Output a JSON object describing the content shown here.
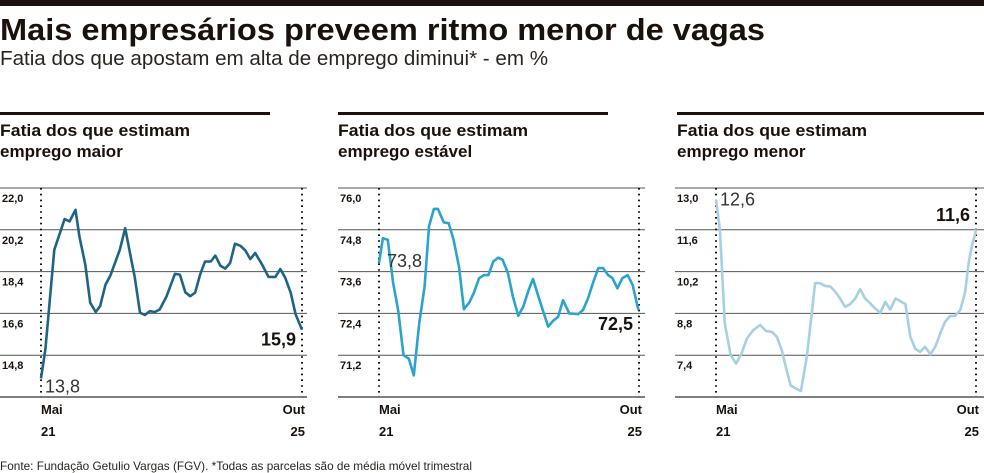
{
  "title": "Mais empresários preveem ritmo menor de vagas",
  "subtitle": "Fatia dos que apostam em alta de emprego diminui* - em %",
  "footer": "Fonte: Fundação Getulio Vargas (FGV). *Todas as parcelas são de média móvel trimestral",
  "colors": {
    "rule": "#1a110c",
    "grid": "#555555"
  },
  "chart_data": [
    {
      "type": "line",
      "title_line1": "Fatia dos que estimam",
      "title_line2": "emprego maior",
      "color": "#1e6585",
      "ylim": [
        13.0,
        22.0
      ],
      "yticks": [
        "22,0",
        "20,2",
        "18,4",
        "16,6",
        "14,8"
      ],
      "ytick_values": [
        22.0,
        20.2,
        18.4,
        16.6,
        14.8
      ],
      "x_start_label": [
        "Mai",
        "21"
      ],
      "x_end_label": [
        "Out",
        "25"
      ],
      "x_range_months": [
        0,
        53
      ],
      "start_value_label": "13,8",
      "end_value_label": "15,9",
      "points": [
        [
          0,
          13.8
        ],
        [
          0.9,
          15.06
        ],
        [
          2.7,
          19.34
        ],
        [
          4.8,
          20.66
        ],
        [
          5.8,
          20.56
        ],
        [
          7.0,
          21.06
        ],
        [
          7.8,
          19.91
        ],
        [
          9.0,
          18.7
        ],
        [
          10.0,
          17.06
        ],
        [
          11.1,
          16.66
        ],
        [
          12.0,
          16.91
        ],
        [
          13.1,
          17.84
        ],
        [
          14.1,
          18.23
        ],
        [
          16.0,
          19.34
        ],
        [
          17.1,
          20.27
        ],
        [
          18.2,
          19.06
        ],
        [
          19.0,
          18.2
        ],
        [
          20.1,
          16.63
        ],
        [
          21.1,
          16.53
        ],
        [
          22.1,
          16.7
        ],
        [
          23.1,
          16.66
        ],
        [
          24.1,
          16.77
        ],
        [
          25.5,
          17.34
        ],
        [
          27.2,
          18.3
        ],
        [
          28.2,
          18.27
        ],
        [
          29.3,
          17.51
        ],
        [
          30.3,
          17.34
        ],
        [
          31.3,
          17.49
        ],
        [
          32.3,
          18.27
        ],
        [
          33.3,
          18.83
        ],
        [
          34.5,
          18.84
        ],
        [
          35.4,
          19.09
        ],
        [
          36.4,
          18.66
        ],
        [
          37.4,
          18.53
        ],
        [
          38.4,
          18.77
        ],
        [
          39.4,
          19.6
        ],
        [
          40.5,
          19.51
        ],
        [
          41.5,
          19.31
        ],
        [
          42.5,
          18.94
        ],
        [
          43.5,
          19.2
        ],
        [
          44.9,
          18.7
        ],
        [
          46.2,
          18.17
        ],
        [
          47.6,
          18.17
        ],
        [
          48.6,
          18.51
        ],
        [
          49.6,
          18.13
        ],
        [
          50.7,
          17.49
        ],
        [
          51.7,
          16.56
        ],
        [
          53,
          15.9
        ]
      ]
    },
    {
      "type": "line",
      "title_line1": "Fatia dos que estimam",
      "title_line2": "emprego estável",
      "color": "#2ba3cc",
      "ylim": [
        70.0,
        76.0
      ],
      "yticks": [
        "76,0",
        "74,8",
        "73,6",
        "72,4",
        "71,2"
      ],
      "ytick_values": [
        76.0,
        74.8,
        73.6,
        72.4,
        71.2
      ],
      "x_start_label": [
        "Mai",
        "21"
      ],
      "x_end_label": [
        "Out",
        "25"
      ],
      "x_range_months": [
        0,
        53
      ],
      "start_value_label": "73,8",
      "end_value_label": "72,5",
      "points": [
        [
          0,
          73.84
        ],
        [
          0.8,
          74.56
        ],
        [
          1.8,
          74.51
        ],
        [
          2.9,
          73.26
        ],
        [
          3.9,
          72.5
        ],
        [
          5.0,
          71.2
        ],
        [
          6.1,
          71.1
        ],
        [
          7.1,
          70.62
        ],
        [
          8.2,
          72.11
        ],
        [
          9.3,
          73.17
        ],
        [
          10.2,
          74.9
        ],
        [
          11.2,
          75.4
        ],
        [
          12.0,
          75.4
        ],
        [
          13.2,
          75.01
        ],
        [
          14.2,
          74.99
        ],
        [
          15.2,
          74.51
        ],
        [
          16.3,
          73.74
        ],
        [
          17.3,
          72.52
        ],
        [
          18.4,
          72.71
        ],
        [
          19.3,
          72.98
        ],
        [
          20.4,
          73.41
        ],
        [
          21.4,
          73.5
        ],
        [
          22.3,
          73.5
        ],
        [
          23.3,
          73.89
        ],
        [
          24.3,
          74.0
        ],
        [
          25.2,
          73.94
        ],
        [
          26.3,
          73.55
        ],
        [
          27.3,
          72.88
        ],
        [
          28.4,
          72.33
        ],
        [
          29.4,
          72.59
        ],
        [
          30.5,
          73.07
        ],
        [
          31.4,
          73.39
        ],
        [
          32.4,
          72.93
        ],
        [
          33.5,
          72.45
        ],
        [
          34.5,
          72.02
        ],
        [
          35.5,
          72.19
        ],
        [
          36.5,
          72.3
        ],
        [
          37.5,
          72.78
        ],
        [
          38.8,
          72.4
        ],
        [
          40.6,
          72.38
        ],
        [
          41.6,
          72.5
        ],
        [
          42.6,
          72.83
        ],
        [
          43.7,
          73.31
        ],
        [
          44.7,
          73.7
        ],
        [
          45.7,
          73.7
        ],
        [
          46.7,
          73.5
        ],
        [
          47.6,
          73.41
        ],
        [
          48.6,
          73.12
        ],
        [
          49.6,
          73.41
        ],
        [
          50.7,
          73.5
        ],
        [
          51.7,
          73.22
        ],
        [
          52.8,
          72.54
        ],
        [
          53,
          72.5
        ]
      ]
    },
    {
      "type": "line",
      "title_line1": "Fatia dos que estimam",
      "title_line2": "emprego menor",
      "color": "#a7d0e3",
      "ylim": [
        6.0,
        13.0
      ],
      "yticks": [
        "13,0",
        "11,6",
        "10,2",
        "8,8",
        "7,4"
      ],
      "ytick_values": [
        13.0,
        11.6,
        10.2,
        8.8,
        7.4
      ],
      "x_start_label": [
        "Mai",
        "21"
      ],
      "x_end_label": [
        "Out",
        "25"
      ],
      "x_range_months": [
        0,
        53
      ],
      "start_value_label": "12,6",
      "end_value_label": "11,6",
      "points": [
        [
          0,
          12.61
        ],
        [
          0.8,
          11.6
        ],
        [
          1.8,
          8.46
        ],
        [
          3.0,
          7.4
        ],
        [
          4.1,
          7.12
        ],
        [
          5.2,
          7.46
        ],
        [
          6.3,
          7.96
        ],
        [
          7.6,
          8.24
        ],
        [
          9.0,
          8.41
        ],
        [
          10.2,
          8.21
        ],
        [
          11.4,
          8.18
        ],
        [
          12.4,
          8.02
        ],
        [
          13.4,
          7.57
        ],
        [
          14.4,
          6.9
        ],
        [
          15.2,
          6.39
        ],
        [
          16.3,
          6.28
        ],
        [
          17.3,
          6.2
        ],
        [
          18.5,
          7.34
        ],
        [
          20.2,
          9.81
        ],
        [
          21.2,
          9.81
        ],
        [
          22.2,
          9.72
        ],
        [
          23.3,
          9.7
        ],
        [
          24.3,
          9.53
        ],
        [
          25.3,
          9.3
        ],
        [
          26.3,
          9.02
        ],
        [
          27.3,
          9.1
        ],
        [
          28.4,
          9.3
        ],
        [
          29.4,
          9.61
        ],
        [
          30.4,
          9.3
        ],
        [
          31.4,
          9.14
        ],
        [
          32.4,
          8.97
        ],
        [
          33.5,
          8.82
        ],
        [
          34.5,
          9.19
        ],
        [
          35.5,
          8.93
        ],
        [
          36.6,
          9.3
        ],
        [
          37.6,
          9.21
        ],
        [
          38.6,
          9.11
        ],
        [
          39.6,
          8.02
        ],
        [
          40.6,
          7.62
        ],
        [
          41.6,
          7.51
        ],
        [
          42.6,
          7.68
        ],
        [
          43.7,
          7.43
        ],
        [
          44.7,
          7.68
        ],
        [
          45.7,
          8.13
        ],
        [
          46.7,
          8.52
        ],
        [
          47.7,
          8.71
        ],
        [
          48.7,
          8.72
        ],
        [
          49.8,
          8.91
        ],
        [
          50.8,
          9.53
        ],
        [
          51.5,
          10.48
        ],
        [
          52.2,
          11.1
        ],
        [
          52.8,
          11.43
        ],
        [
          53,
          11.62
        ]
      ]
    }
  ]
}
